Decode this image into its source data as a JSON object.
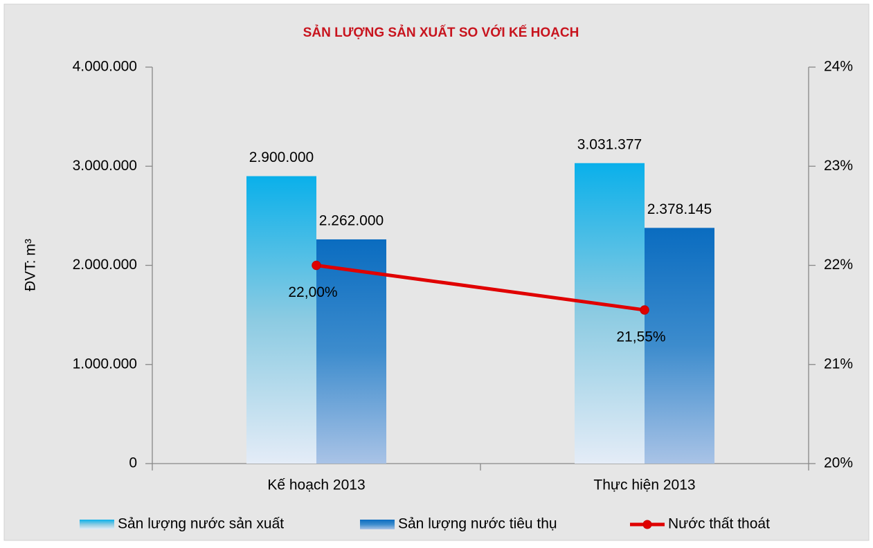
{
  "chart_data": {
    "type": "bar_line",
    "title": "SẢN LƯỢNG SẢN XUẤT SO VỚI KẾ HOẠCH",
    "y_label": "ĐVT: m³",
    "categories": [
      "Kế hoạch 2013",
      "Thực hiện 2013"
    ],
    "series": [
      {
        "name": "Sản lượng nước sản xuất",
        "color": "#0ab0ea",
        "type": "bar",
        "values": [
          2900000,
          3031377
        ],
        "value_labels": [
          "2.900.000",
          "3.031.377"
        ]
      },
      {
        "name": "Sản lượng nước tiêu thụ",
        "color": "#0a6cc0",
        "type": "bar",
        "values": [
          2262000,
          2378145
        ],
        "value_labels": [
          "2.262.000",
          "2.378.145"
        ]
      },
      {
        "name": "Nước thất thoát",
        "color": "#e00000",
        "type": "line",
        "axis": "y2",
        "values": [
          22.0,
          21.55
        ],
        "value_labels": [
          "22,00%",
          "21,55%"
        ]
      }
    ],
    "ylim": [
      0,
      4000000
    ],
    "yticks": [
      {
        "value": 0,
        "label": "0"
      },
      {
        "value": 1000000,
        "label": "1.000.000"
      },
      {
        "value": 2000000,
        "label": "2.000.000"
      },
      {
        "value": 3000000,
        "label": "3.000.000"
      },
      {
        "value": 4000000,
        "label": "4.000.000"
      }
    ],
    "y2lim": [
      20,
      24
    ],
    "y2ticks": [
      {
        "value": 20,
        "label": "20%"
      },
      {
        "value": 21,
        "label": "21%"
      },
      {
        "value": 22,
        "label": "22%"
      },
      {
        "value": 23,
        "label": "23%"
      },
      {
        "value": 24,
        "label": "24%"
      }
    ],
    "legend": "bottom"
  }
}
